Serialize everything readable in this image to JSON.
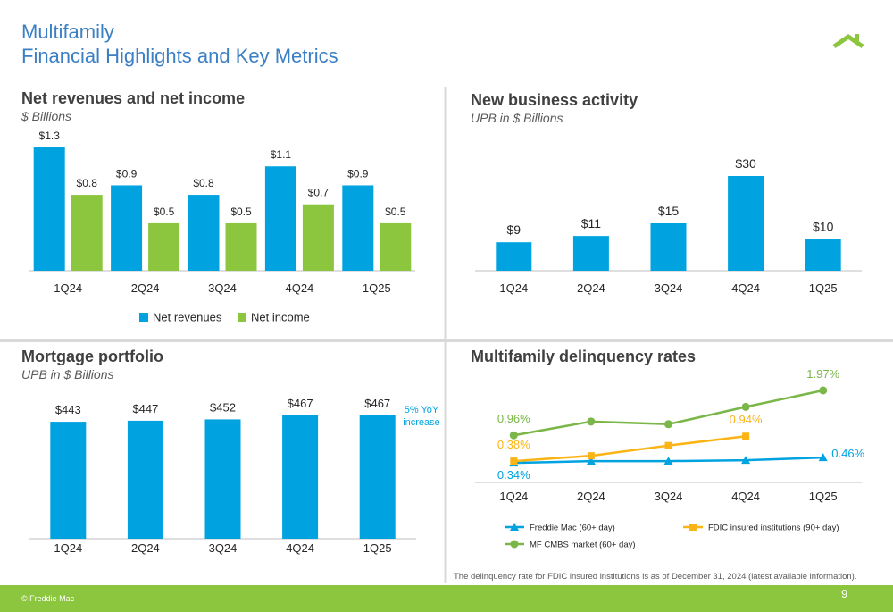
{
  "slide": {
    "title": [
      "Multifamily",
      "Financial Highlights and Key Metrics"
    ],
    "footnote": "The delinquency rate for FDIC insured institutions is as of December 31, 2024 (latest available information).",
    "copyright": "© Freddie Mac",
    "page": "9"
  },
  "chart_data": [
    {
      "type": "bar",
      "title": "Net revenues and net income",
      "subtitle": "$ Billions",
      "categories": [
        "1Q24",
        "2Q24",
        "3Q24",
        "4Q24",
        "1Q25"
      ],
      "legend": "bottom",
      "series": [
        {
          "name": "Net revenues",
          "color": "#00a3e0",
          "values": [
            1.3,
            0.9,
            0.8,
            1.1,
            0.9
          ],
          "value_labels": [
            "$1.3",
            "$0.9",
            "$0.8",
            "$1.1",
            "$0.9"
          ]
        },
        {
          "name": "Net income",
          "color": "#8cc63f",
          "values": [
            0.8,
            0.5,
            0.5,
            0.7,
            0.5
          ],
          "value_labels": [
            "$0.8",
            "$0.5",
            "$0.5",
            "$0.7",
            "$0.5"
          ]
        }
      ]
    },
    {
      "type": "bar",
      "title": "New business activity",
      "subtitle": "UPB in $ Billions",
      "categories": [
        "1Q24",
        "2Q24",
        "3Q24",
        "4Q24",
        "1Q25"
      ],
      "color": "#00a3e0",
      "values": [
        9,
        11,
        15,
        30,
        10
      ],
      "value_labels": [
        "$9",
        "$11",
        "$15",
        "$30",
        "$10"
      ]
    },
    {
      "type": "bar",
      "title": "Mortgage portfolio",
      "subtitle": "UPB in $ Billions",
      "categories": [
        "1Q24",
        "2Q24",
        "3Q24",
        "4Q24",
        "1Q25"
      ],
      "color": "#00a3e0",
      "values": [
        443,
        447,
        452,
        467,
        467
      ],
      "value_labels": [
        "$443",
        "$447",
        "$452",
        "$467",
        "$467"
      ],
      "annotation": "5% YoY increase"
    },
    {
      "type": "line",
      "title": "Multifamily delinquency rates",
      "categories": [
        "1Q24",
        "2Q24",
        "3Q24",
        "4Q24",
        "1Q25"
      ],
      "legend": "bottom",
      "series": [
        {
          "name": "Freddie Mac (60+ day)",
          "color": "#00a3e0",
          "marker": "triangle",
          "values": [
            0.34,
            0.38,
            0.38,
            0.4,
            0.46
          ],
          "value_labels": [
            "0.34%",
            null,
            null,
            null,
            "0.46%"
          ]
        },
        {
          "name": "FDIC insured institutions (90+ day)",
          "color": "#fbb415",
          "marker": "square",
          "values": [
            0.38,
            0.5,
            0.73,
            0.94,
            null
          ],
          "value_labels": [
            "0.38%",
            null,
            null,
            "0.94%",
            null
          ]
        },
        {
          "name": "MF CMBS market (60+ day)",
          "color": "#7ab648",
          "marker": "circle",
          "values": [
            0.96,
            1.27,
            1.21,
            1.6,
            1.97
          ],
          "value_labels": [
            "0.96%",
            null,
            null,
            null,
            "1.97%"
          ]
        }
      ]
    }
  ]
}
